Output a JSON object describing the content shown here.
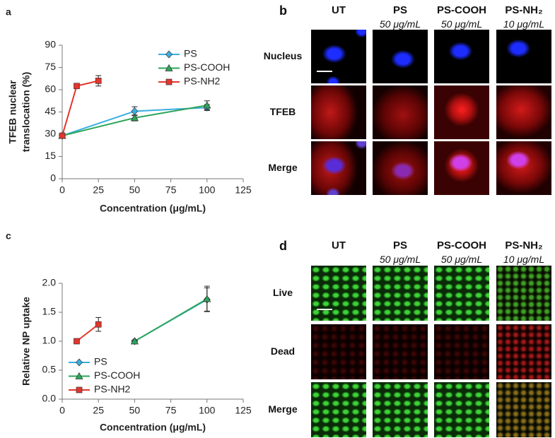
{
  "chart_data": [
    {
      "type": "line",
      "panel": "a",
      "ylabel": [
        "TFEB nuclear",
        "translocation (%)"
      ],
      "xlabel": "Concentration (μg/mL)",
      "xlim": [
        0,
        125
      ],
      "xticks": [
        0,
        25,
        50,
        75,
        100,
        125
      ],
      "ylim": [
        0,
        90
      ],
      "yticks": [
        0,
        15,
        30,
        45,
        60,
        75,
        90
      ],
      "legend": "upper right",
      "series": [
        {
          "name": "PS",
          "color": "#3aaee0",
          "marker": "diamond",
          "x": [
            0,
            50,
            100
          ],
          "values": [
            29,
            45.5,
            48
          ],
          "errors": [
            1,
            3,
            2
          ]
        },
        {
          "name": "PS-COOH",
          "color": "#2ea55a",
          "marker": "triangle",
          "x": [
            0,
            50,
            100
          ],
          "values": [
            29,
            41,
            49.5
          ],
          "errors": [
            1,
            2,
            3
          ]
        },
        {
          "name": "PS-NH2",
          "color": "#e2362d",
          "marker": "square",
          "x": [
            0,
            10,
            25
          ],
          "values": [
            29,
            62.5,
            66
          ],
          "errors": [
            1,
            1,
            3.5
          ]
        }
      ]
    },
    {
      "type": "line",
      "panel": "c",
      "ylabel": [
        "Relative NP uptake"
      ],
      "xlabel": "Concentration (μg/mL)",
      "xlim": [
        0,
        125
      ],
      "xticks": [
        0,
        25,
        50,
        75,
        100,
        125
      ],
      "ylim": [
        0,
        2
      ],
      "yticks": [
        {
          "value": 0,
          "label": "0.0"
        },
        0.5,
        {
          "value": 1,
          "label": "1.0"
        },
        1.5,
        {
          "value": 2,
          "label": "2.0"
        }
      ],
      "legend": "lower left",
      "series": [
        {
          "name": "PS",
          "color": "#3aaee0",
          "marker": "diamond",
          "x": [
            50,
            100
          ],
          "values": [
            1.0,
            1.72
          ],
          "errors": [
            0.02,
            0.2
          ]
        },
        {
          "name": "PS-COOH",
          "color": "#2ea55a",
          "marker": "triangle",
          "x": [
            50,
            100
          ],
          "values": [
            1.0,
            1.73
          ],
          "errors": [
            0.02,
            0.22
          ]
        },
        {
          "name": "PS-NH2",
          "color": "#e2362d",
          "marker": "square",
          "x": [
            10,
            25
          ],
          "values": [
            1.0,
            1.29
          ],
          "errors": [
            0.03,
            0.12
          ]
        }
      ]
    }
  ],
  "panel_b": {
    "label": "b",
    "columns": [
      {
        "name": "UT"
      },
      {
        "name": "PS",
        "dose": "50 μg/mL"
      },
      {
        "name": "PS-COOH",
        "dose": "50 μg/mL"
      },
      {
        "name": "PS-NH₂",
        "dose": "10 μg/mL"
      }
    ],
    "rows": [
      "Nucleus",
      "TFEB",
      "Merge"
    ]
  },
  "panel_d": {
    "label": "d",
    "columns": [
      {
        "name": "UT"
      },
      {
        "name": "PS",
        "dose": "50 μg/mL"
      },
      {
        "name": "PS-COOH",
        "dose": "50 μg/mL"
      },
      {
        "name": "PS-NH₂",
        "dose": "10 μg/mL"
      }
    ],
    "rows": [
      "Live",
      "Dead",
      "Merge"
    ]
  }
}
